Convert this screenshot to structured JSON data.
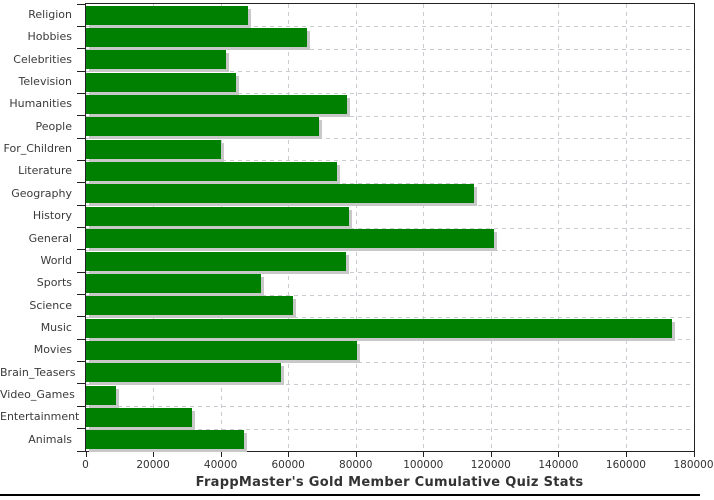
{
  "chart_data": {
    "type": "bar",
    "orientation": "horizontal",
    "title": "FrappMaster's Gold Member Cumulative Quiz Stats",
    "categories": [
      "Religion",
      "Hobbies",
      "Celebrities",
      "Television",
      "Humanities",
      "People",
      "For_Children",
      "Literature",
      "Geography",
      "History",
      "General",
      "World",
      "Sports",
      "Science",
      "Music",
      "Movies",
      "Brain_Teasers",
      "Video_Games",
      "Entertainment",
      "Animals"
    ],
    "values": [
      48000,
      65500,
      41500,
      44500,
      77500,
      69000,
      40000,
      74500,
      115000,
      78000,
      121000,
      77000,
      52000,
      61500,
      173500,
      80500,
      58000,
      9000,
      31500,
      47000
    ],
    "xlabel": "",
    "ylabel": "",
    "xlim": [
      0,
      180000
    ],
    "xticks": [
      0,
      20000,
      40000,
      60000,
      80000,
      100000,
      120000,
      140000,
      160000,
      180000
    ],
    "xtick_labels": [
      "0",
      "20000",
      "40000",
      "60000",
      "80000",
      "100000",
      "120000",
      "140000",
      "160000",
      "180000"
    ],
    "grid": "dashed",
    "legend": "none",
    "colors": {
      "bar": "#008000",
      "bar_shadow": "#c8c8c8",
      "grid": "#c9cdd1",
      "axis": "#222222",
      "label_text": "#3a3a3a",
      "tick_text": "#333333",
      "title_text": "#333333",
      "bottom_rule": "#000000",
      "background": "#ffffff"
    }
  }
}
